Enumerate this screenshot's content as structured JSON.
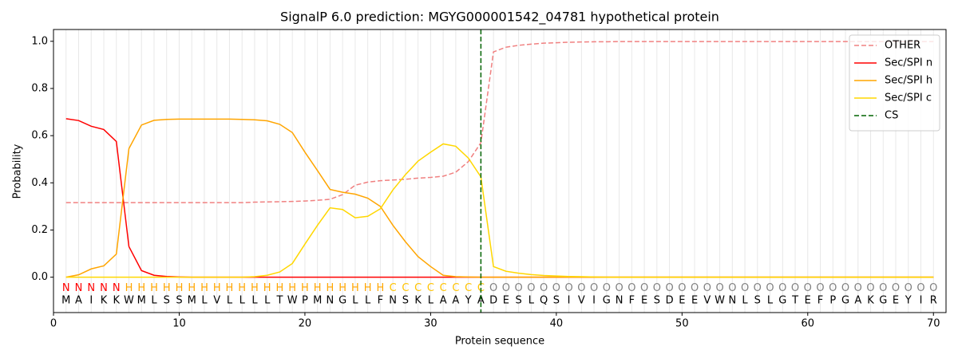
{
  "chart_data": {
    "type": "line",
    "title": "SignalP 6.0 prediction: MGYG000001542_04781 hypothetical protein",
    "xlabel": "Protein sequence",
    "ylabel": "Probability",
    "xlim": [
      0,
      71
    ],
    "ylim": [
      -0.15,
      1.05
    ],
    "xticks": [
      0,
      10,
      20,
      30,
      40,
      50,
      60,
      70
    ],
    "yticks": [
      {
        "value": 0,
        "label": "0.0"
      },
      {
        "value": 0.2,
        "label": "0.2"
      },
      {
        "value": 0.4,
        "label": "0.4"
      },
      {
        "value": 0.6,
        "label": "0.6"
      },
      {
        "value": 0.8,
        "label": "0.8"
      },
      {
        "value": 1,
        "label": "1.0"
      }
    ],
    "grid": true,
    "legend": "upper right",
    "x": [
      1,
      2,
      3,
      4,
      5,
      6,
      7,
      8,
      9,
      10,
      11,
      12,
      13,
      14,
      15,
      16,
      17,
      18,
      19,
      20,
      21,
      22,
      23,
      24,
      25,
      26,
      27,
      28,
      29,
      30,
      31,
      32,
      33,
      34,
      35,
      36,
      37,
      38,
      39,
      40,
      41,
      42,
      43,
      44,
      45,
      46,
      47,
      48,
      49,
      50,
      51,
      52,
      53,
      54,
      55,
      56,
      57,
      58,
      59,
      60,
      61,
      62,
      63,
      64,
      65,
      66,
      67,
      68,
      69,
      70
    ],
    "series": [
      {
        "name": "OTHER",
        "color": "#f08080",
        "linestyle": "dashed",
        "values": [
          0.316,
          0.316,
          0.316,
          0.316,
          0.316,
          0.316,
          0.316,
          0.316,
          0.316,
          0.316,
          0.316,
          0.316,
          0.316,
          0.316,
          0.316,
          0.318,
          0.319,
          0.32,
          0.321,
          0.323,
          0.326,
          0.33,
          0.35,
          0.39,
          0.403,
          0.409,
          0.412,
          0.415,
          0.42,
          0.423,
          0.428,
          0.445,
          0.49,
          0.57,
          0.955,
          0.975,
          0.983,
          0.988,
          0.992,
          0.994,
          0.996,
          0.997,
          0.998,
          0.998,
          0.999,
          0.999,
          0.999,
          0.999,
          0.999,
          0.999,
          0.999,
          0.999,
          0.999,
          0.999,
          0.999,
          0.999,
          0.999,
          0.999,
          0.999,
          0.999,
          0.999,
          0.999,
          0.999,
          0.999,
          0.999,
          0.999,
          0.999,
          0.999,
          0.999,
          0.999
        ]
      },
      {
        "name": "Sec/SPI n",
        "color": "#ff0000",
        "linestyle": "solid",
        "values": [
          0.672,
          0.664,
          0.64,
          0.626,
          0.575,
          0.13,
          0.028,
          0.008,
          0.003,
          0.001,
          0,
          0,
          0,
          0,
          0,
          0,
          0,
          0,
          0,
          0,
          0,
          0,
          0,
          0,
          0,
          0,
          0,
          0,
          0,
          0,
          0,
          0,
          0,
          0,
          0,
          0,
          0,
          0,
          0,
          0,
          0,
          0,
          0,
          0,
          0,
          0,
          0,
          0,
          0,
          0,
          0,
          0,
          0,
          0,
          0,
          0,
          0,
          0,
          0,
          0,
          0,
          0,
          0,
          0,
          0,
          0,
          0,
          0,
          0,
          0
        ]
      },
      {
        "name": "Sec/SPI h",
        "color": "#ffa500",
        "linestyle": "solid",
        "values": [
          0,
          0.01,
          0.035,
          0.048,
          0.098,
          0.545,
          0.645,
          0.665,
          0.669,
          0.67,
          0.67,
          0.67,
          0.67,
          0.67,
          0.669,
          0.667,
          0.663,
          0.648,
          0.613,
          0.53,
          0.452,
          0.372,
          0.36,
          0.352,
          0.335,
          0.3,
          0.22,
          0.15,
          0.087,
          0.045,
          0.008,
          0.002,
          0.001,
          0,
          0,
          0,
          0,
          0,
          0,
          0,
          0,
          0,
          0,
          0,
          0,
          0,
          0,
          0,
          0,
          0,
          0,
          0,
          0,
          0,
          0,
          0,
          0,
          0,
          0,
          0,
          0,
          0,
          0,
          0,
          0,
          0,
          0,
          0,
          0,
          0
        ]
      },
      {
        "name": "Sec/SPI c",
        "color": "#ffd700",
        "linestyle": "solid",
        "values": [
          0,
          0,
          0,
          0,
          0,
          0,
          0,
          0,
          0,
          0,
          0,
          0,
          0,
          0,
          0,
          0.002,
          0.008,
          0.022,
          0.058,
          0.14,
          0.22,
          0.294,
          0.287,
          0.252,
          0.258,
          0.29,
          0.37,
          0.435,
          0.492,
          0.53,
          0.565,
          0.555,
          0.505,
          0.425,
          0.045,
          0.025,
          0.017,
          0.011,
          0.007,
          0.005,
          0.003,
          0.002,
          0.001,
          0,
          0,
          0,
          0,
          0,
          0,
          0,
          0,
          0,
          0,
          0,
          0,
          0,
          0,
          0,
          0,
          0,
          0,
          0,
          0,
          0,
          0,
          0,
          0,
          0,
          0,
          0
        ]
      }
    ],
    "markers": [
      {
        "name": "CS",
        "color": "#006400",
        "x": 34
      }
    ],
    "residues": [
      "M",
      "A",
      "I",
      "K",
      "K",
      "W",
      "M",
      "L",
      "S",
      "S",
      "M",
      "L",
      "V",
      "L",
      "L",
      "L",
      "L",
      "T",
      "W",
      "P",
      "M",
      "N",
      "G",
      "L",
      "L",
      "F",
      "N",
      "S",
      "K",
      "L",
      "A",
      "A",
      "Y",
      "A",
      "D",
      "E",
      "S",
      "L",
      "Q",
      "S",
      "I",
      "V",
      "I",
      "G",
      "N",
      "F",
      "E",
      "S",
      "D",
      "E",
      "E",
      "V",
      "W",
      "N",
      "L",
      "S",
      "L",
      "G",
      "T",
      "E",
      "F",
      "P",
      "G",
      "A",
      "K",
      "G",
      "E",
      "Y",
      "I",
      "R"
    ],
    "region_labels": [
      "N",
      "N",
      "N",
      "N",
      "N",
      "H",
      "H",
      "H",
      "H",
      "H",
      "H",
      "H",
      "H",
      "H",
      "H",
      "H",
      "H",
      "H",
      "H",
      "H",
      "H",
      "H",
      "H",
      "H",
      "H",
      "H",
      "C",
      "C",
      "C",
      "C",
      "C",
      "C",
      "C",
      "C",
      "O",
      "O",
      "O",
      "O",
      "O",
      "O",
      "O",
      "O",
      "O",
      "O",
      "O",
      "O",
      "O",
      "O",
      "O",
      "O",
      "O",
      "O",
      "O",
      "O",
      "O",
      "O",
      "O",
      "O",
      "O",
      "O",
      "O",
      "O",
      "O",
      "O",
      "O",
      "O",
      "O",
      "O",
      "O",
      "O"
    ],
    "region_colors": {
      "N": "#ff0000",
      "H": "#ffa500",
      "C": "#ffc300",
      "O": "#808080"
    }
  }
}
